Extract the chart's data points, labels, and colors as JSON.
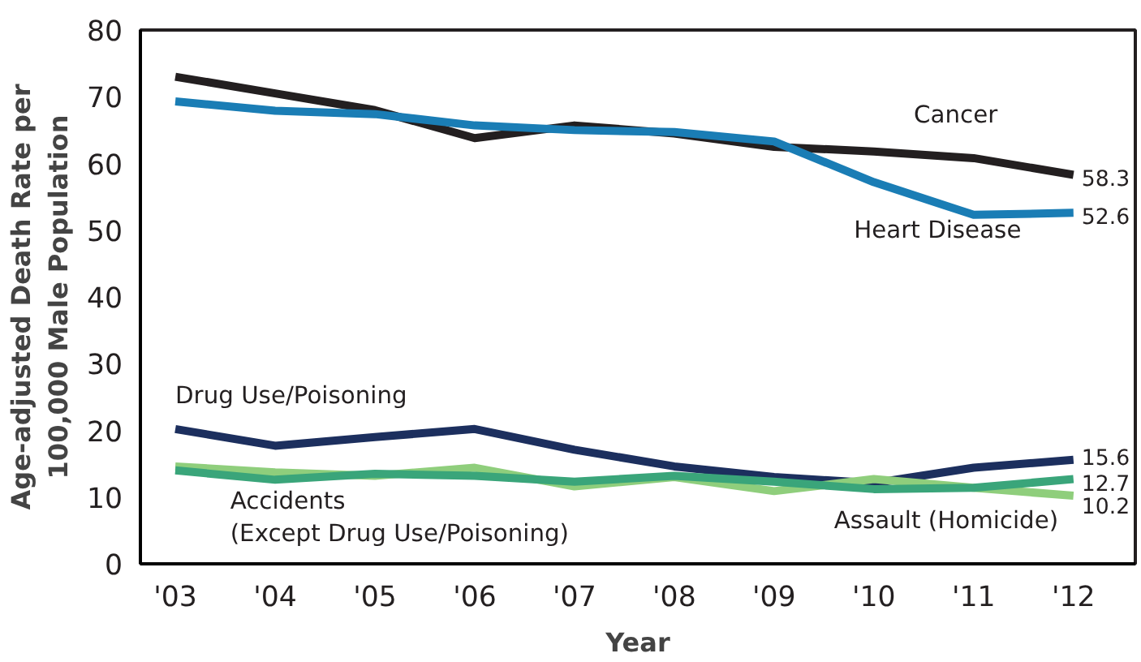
{
  "chart_data": {
    "type": "line",
    "xlabel": "Year",
    "ylabel": "Age-adjusted Death Rate per\n100,000 Male Population",
    "categories": [
      "'03",
      "'04",
      "'05",
      "'06",
      "'07",
      "'08",
      "'09",
      "'10",
      "'11",
      "'12"
    ],
    "ylim": [
      0,
      80
    ],
    "yticks": [
      0,
      10,
      20,
      30,
      40,
      50,
      60,
      70,
      80
    ],
    "grid": false,
    "marker": "none",
    "line_style": "solid",
    "series": [
      {
        "name": "Cancer",
        "color": "#231f20",
        "values": [
          73,
          70.5,
          68,
          63.8,
          65.7,
          64.5,
          62.5,
          61.8,
          60.8,
          58.3
        ],
        "value_labels": [
          null,
          null,
          null,
          null,
          null,
          null,
          null,
          null,
          null,
          "58.3"
        ]
      },
      {
        "name": "Heart Disease",
        "color": "#1a7db5",
        "values": [
          69.3,
          67.9,
          67.4,
          65.7,
          65,
          64.7,
          63.3,
          57.2,
          52.3,
          52.6
        ],
        "value_labels": [
          null,
          null,
          null,
          null,
          null,
          null,
          null,
          null,
          null,
          "52.6"
        ]
      },
      {
        "name": "Drug Use/Poisoning",
        "color": "#1c2f5e",
        "values": [
          20.2,
          17.7,
          19,
          20.2,
          17.1,
          14.6,
          13,
          12.1,
          14.4,
          15.6
        ],
        "value_labels": [
          null,
          null,
          null,
          null,
          null,
          null,
          null,
          null,
          null,
          "15.6"
        ]
      },
      {
        "name": "Assault (Homicide)",
        "color": "#8fce7c",
        "values": [
          14.6,
          13.7,
          13.2,
          14.4,
          11.6,
          13,
          10.9,
          12.7,
          11.4,
          10.2
        ],
        "value_labels": [
          null,
          null,
          null,
          null,
          null,
          null,
          null,
          null,
          null,
          "10.2"
        ]
      },
      {
        "name": "Accidents\n(Except Drug Use/Poisoning)",
        "color": "#3aa57a",
        "values": [
          14,
          12.6,
          13.5,
          13.2,
          12.3,
          13.2,
          12.3,
          11.2,
          11.4,
          12.7
        ],
        "value_labels": [
          null,
          null,
          null,
          null,
          null,
          null,
          null,
          null,
          null,
          "12.7"
        ]
      }
    ]
  }
}
